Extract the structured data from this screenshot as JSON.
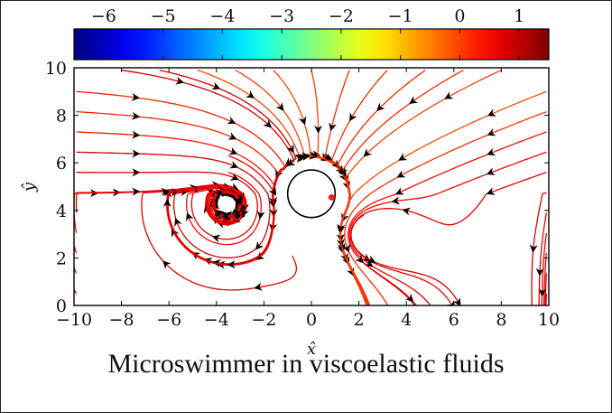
{
  "caption": "Microswimmer in viscoelastic fluids",
  "chart_data": {
    "type": "streamline",
    "title": "",
    "xlabel": "x̂",
    "ylabel": "ŷ",
    "xlim": [
      -10,
      10
    ],
    "ylim": [
      0,
      10
    ],
    "x_ticks": [
      -10,
      -8,
      -6,
      -4,
      -2,
      0,
      2,
      4,
      6,
      8,
      10
    ],
    "y_ticks": [
      0,
      2,
      4,
      6,
      8,
      10
    ],
    "x_tick_labels": [
      "−10",
      "−8",
      "−6",
      "−4",
      "−2",
      "0",
      "2",
      "4",
      "6",
      "8",
      "10"
    ],
    "y_tick_labels": [
      "0",
      "2",
      "4",
      "6",
      "8",
      "10"
    ],
    "grid": false,
    "colorbar": {
      "position": "top",
      "colormap": "jet",
      "range": [
        -6.5,
        1.5
      ],
      "ticks": [
        -6,
        -5,
        -4,
        -3,
        -2,
        -1,
        0,
        1
      ],
      "tick_labels": [
        "−6",
        "−5",
        "−4",
        "−3",
        "−2",
        "−1",
        "0",
        "1"
      ]
    },
    "body": {
      "shape": "circle",
      "center": [
        0,
        4.7
      ],
      "radius": 1,
      "fill": "#ffffff"
    },
    "marker": {
      "x": 0.85,
      "y": 4.55,
      "color": "#ff1a1a"
    }
  }
}
